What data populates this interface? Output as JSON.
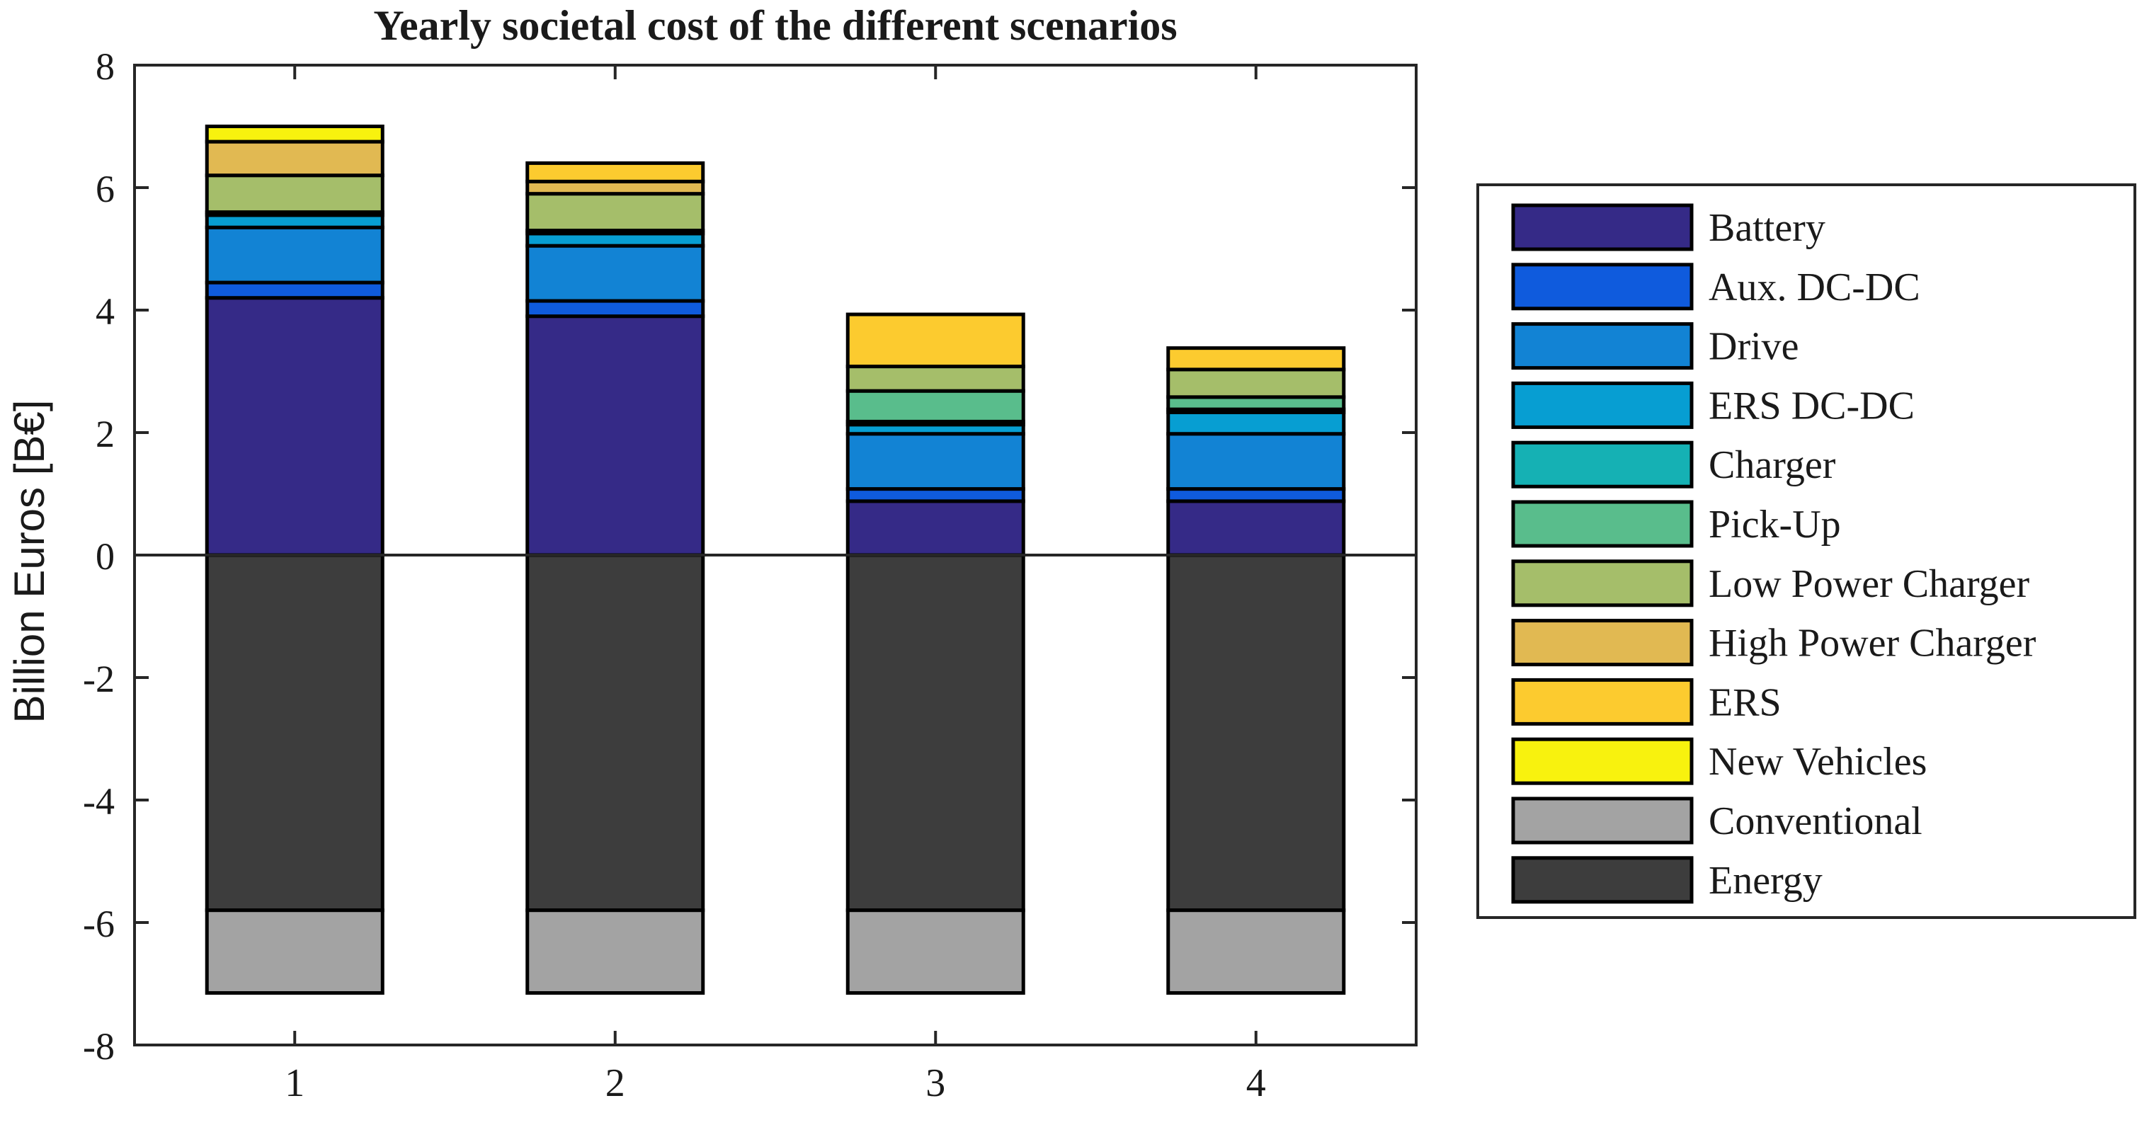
{
  "chart_data": {
    "type": "bar",
    "stacked": true,
    "title": "Yearly societal cost of the different scenarios",
    "xlabel": "",
    "ylabel": "Billion Euros [B€]",
    "ylim": [
      -8,
      8
    ],
    "yticks": [
      8,
      6,
      4,
      2,
      0,
      -2,
      -4,
      -6,
      -8
    ],
    "categories": [
      "1",
      "2",
      "3",
      "4"
    ],
    "grid": false,
    "legend_position": "right",
    "series": [
      {
        "name": "Energy",
        "color": "#3d3d3d",
        "values": [
          -5.8,
          -5.8,
          -5.8,
          -5.8
        ]
      },
      {
        "name": "Conventional",
        "color": "#a3a3a3",
        "values": [
          -1.35,
          -1.35,
          -1.35,
          -1.35
        ]
      },
      {
        "name": "Battery",
        "color": "#352a87",
        "values": [
          4.2,
          3.9,
          0.88,
          0.88
        ]
      },
      {
        "name": "Aux. DC-DC",
        "color": "#0f5bdd",
        "values": [
          0.25,
          0.25,
          0.2,
          0.2
        ]
      },
      {
        "name": "Drive",
        "color": "#1283d4",
        "values": [
          0.9,
          0.9,
          0.9,
          0.9
        ]
      },
      {
        "name": "ERS DC-DC",
        "color": "#079ed2",
        "values": [
          0.2,
          0.2,
          0.15,
          0.35
        ]
      },
      {
        "name": "Charger",
        "color": "#15b1b4",
        "values": [
          0.05,
          0.05,
          0.05,
          0.05
        ]
      },
      {
        "name": "Pick-Up",
        "color": "#59bd8c",
        "values": [
          0.0,
          0.0,
          0.5,
          0.2
        ]
      },
      {
        "name": "Low Power Charger",
        "color": "#a5be6a",
        "values": [
          0.6,
          0.6,
          0.4,
          0.45
        ]
      },
      {
        "name": "High Power Charger",
        "color": "#e1b952",
        "values": [
          0.55,
          0.2,
          0.0,
          0.0
        ]
      },
      {
        "name": "ERS",
        "color": "#fccb2f",
        "values": [
          0.0,
          0.3,
          0.85,
          0.35
        ]
      },
      {
        "name": "New Vehicles",
        "color": "#f8f20e",
        "values": [
          0.25,
          0.0,
          0.0,
          0.0
        ]
      }
    ],
    "legend_order": [
      "Battery",
      "Aux. DC-DC",
      "Drive",
      "ERS DC-DC",
      "Charger",
      "Pick-Up",
      "Low Power Charger",
      "High Power Charger",
      "ERS",
      "New Vehicles",
      "Conventional",
      "Energy"
    ]
  }
}
